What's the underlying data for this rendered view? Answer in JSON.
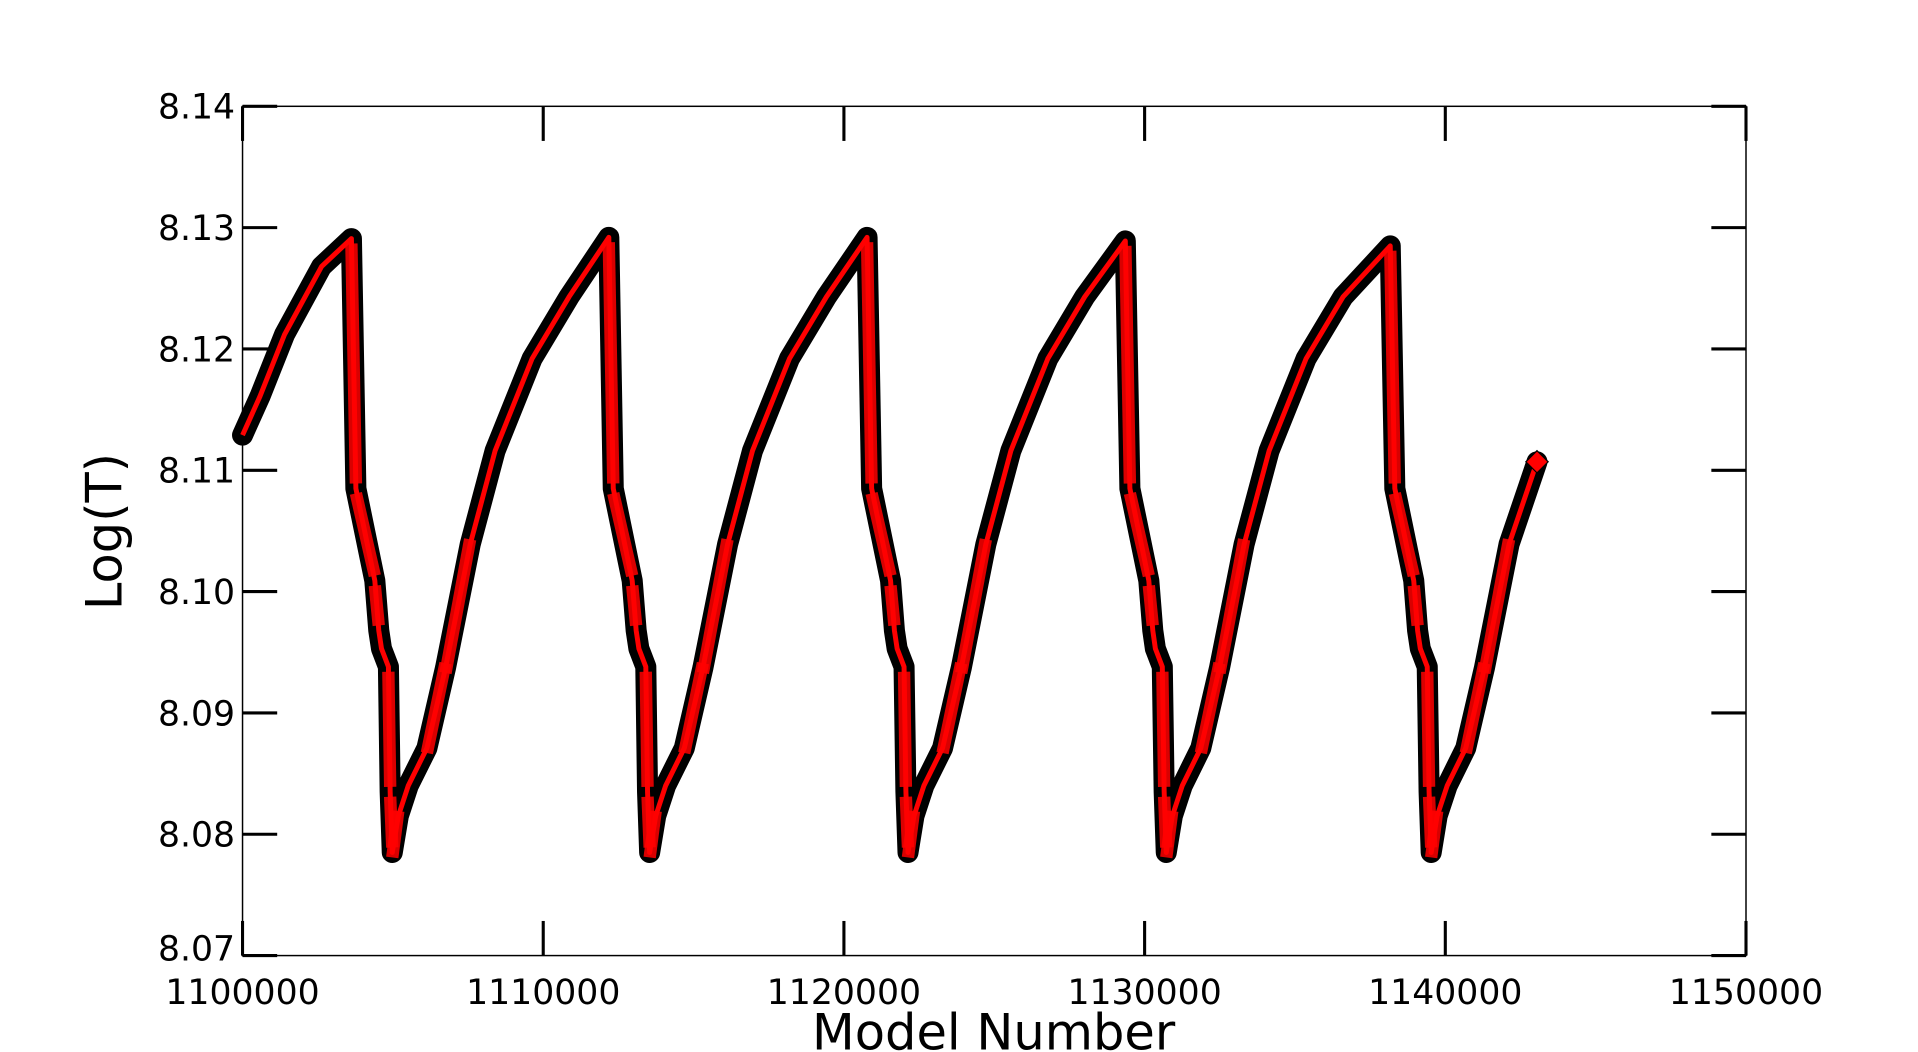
{
  "chart_data": {
    "type": "line",
    "title": "",
    "xlabel": "Model Number",
    "ylabel": "Log(T)",
    "xlim": [
      1100000,
      1150000
    ],
    "ylim": [
      8.07,
      8.14
    ],
    "xticks": [
      1100000,
      1110000,
      1120000,
      1130000,
      1140000,
      1150000
    ],
    "xtick_labels": [
      "1100000",
      "1110000",
      "1120000",
      "1130000",
      "1140000",
      "1150000"
    ],
    "yticks": [
      8.07,
      8.08,
      8.09,
      8.1,
      8.11,
      8.12,
      8.13,
      8.14
    ],
    "ytick_labels": [
      "8.07",
      "8.08",
      "8.09",
      "8.10",
      "8.11",
      "8.12",
      "8.13",
      "8.14"
    ],
    "grid": false,
    "legend": "none",
    "series": [
      {
        "name": "Log(T)",
        "line_color": "#ff0000",
        "outline_color": "#000000",
        "marker": "diamond",
        "points": [
          [
            1100000,
            8.1129
          ],
          [
            1100580,
            8.1161
          ],
          [
            1101400,
            8.1212
          ],
          [
            1102630,
            8.1268
          ],
          [
            1103620,
            8.1291
          ],
          [
            1103770,
            8.1085
          ],
          [
            1104400,
            8.1009
          ],
          [
            1104530,
            8.0968
          ],
          [
            1104620,
            8.0953
          ],
          [
            1104850,
            8.0938
          ],
          [
            1104910,
            8.0835
          ],
          [
            1104980,
            8.0785
          ],
          [
            1105180,
            8.0815
          ],
          [
            1105510,
            8.084
          ],
          [
            1106130,
            8.0871
          ],
          [
            1106750,
            8.0937
          ],
          [
            1107570,
            8.1039
          ],
          [
            1108400,
            8.1116
          ],
          [
            1109630,
            8.1192
          ],
          [
            1110860,
            8.1243
          ],
          [
            1112180,
            8.1292
          ],
          [
            1112330,
            8.1085
          ],
          [
            1112960,
            8.1009
          ],
          [
            1113090,
            8.0968
          ],
          [
            1113180,
            8.0953
          ],
          [
            1113410,
            8.0938
          ],
          [
            1113470,
            8.0835
          ],
          [
            1113540,
            8.0785
          ],
          [
            1113740,
            8.0815
          ],
          [
            1114070,
            8.084
          ],
          [
            1114690,
            8.0871
          ],
          [
            1115310,
            8.0937
          ],
          [
            1116130,
            8.1039
          ],
          [
            1116960,
            8.1116
          ],
          [
            1118190,
            8.1192
          ],
          [
            1119420,
            8.1243
          ],
          [
            1120770,
            8.1292
          ],
          [
            1120920,
            8.1085
          ],
          [
            1121550,
            8.1009
          ],
          [
            1121680,
            8.0968
          ],
          [
            1121770,
            8.0953
          ],
          [
            1122000,
            8.0938
          ],
          [
            1122060,
            8.0835
          ],
          [
            1122130,
            8.0785
          ],
          [
            1122330,
            8.0815
          ],
          [
            1122660,
            8.084
          ],
          [
            1123280,
            8.0871
          ],
          [
            1123900,
            8.0937
          ],
          [
            1124720,
            8.1039
          ],
          [
            1125550,
            8.1116
          ],
          [
            1126780,
            8.1192
          ],
          [
            1128010,
            8.1243
          ],
          [
            1129360,
            8.1289
          ],
          [
            1129510,
            8.1085
          ],
          [
            1130140,
            8.1009
          ],
          [
            1130270,
            8.0968
          ],
          [
            1130360,
            8.0953
          ],
          [
            1130590,
            8.0938
          ],
          [
            1130650,
            8.0835
          ],
          [
            1130720,
            8.0785
          ],
          [
            1130920,
            8.0815
          ],
          [
            1131250,
            8.084
          ],
          [
            1131870,
            8.0871
          ],
          [
            1132490,
            8.0937
          ],
          [
            1133310,
            8.1039
          ],
          [
            1134140,
            8.1116
          ],
          [
            1135370,
            8.1192
          ],
          [
            1136600,
            8.1243
          ],
          [
            1138170,
            8.1285
          ],
          [
            1138320,
            8.1085
          ],
          [
            1138950,
            8.1009
          ],
          [
            1139080,
            8.0968
          ],
          [
            1139170,
            8.0953
          ],
          [
            1139400,
            8.0938
          ],
          [
            1139460,
            8.0835
          ],
          [
            1139530,
            8.0785
          ],
          [
            1139730,
            8.0815
          ],
          [
            1140060,
            8.084
          ],
          [
            1140680,
            8.0871
          ],
          [
            1141300,
            8.0937
          ],
          [
            1142120,
            8.1039
          ],
          [
            1143050,
            8.1107
          ]
        ]
      }
    ]
  }
}
